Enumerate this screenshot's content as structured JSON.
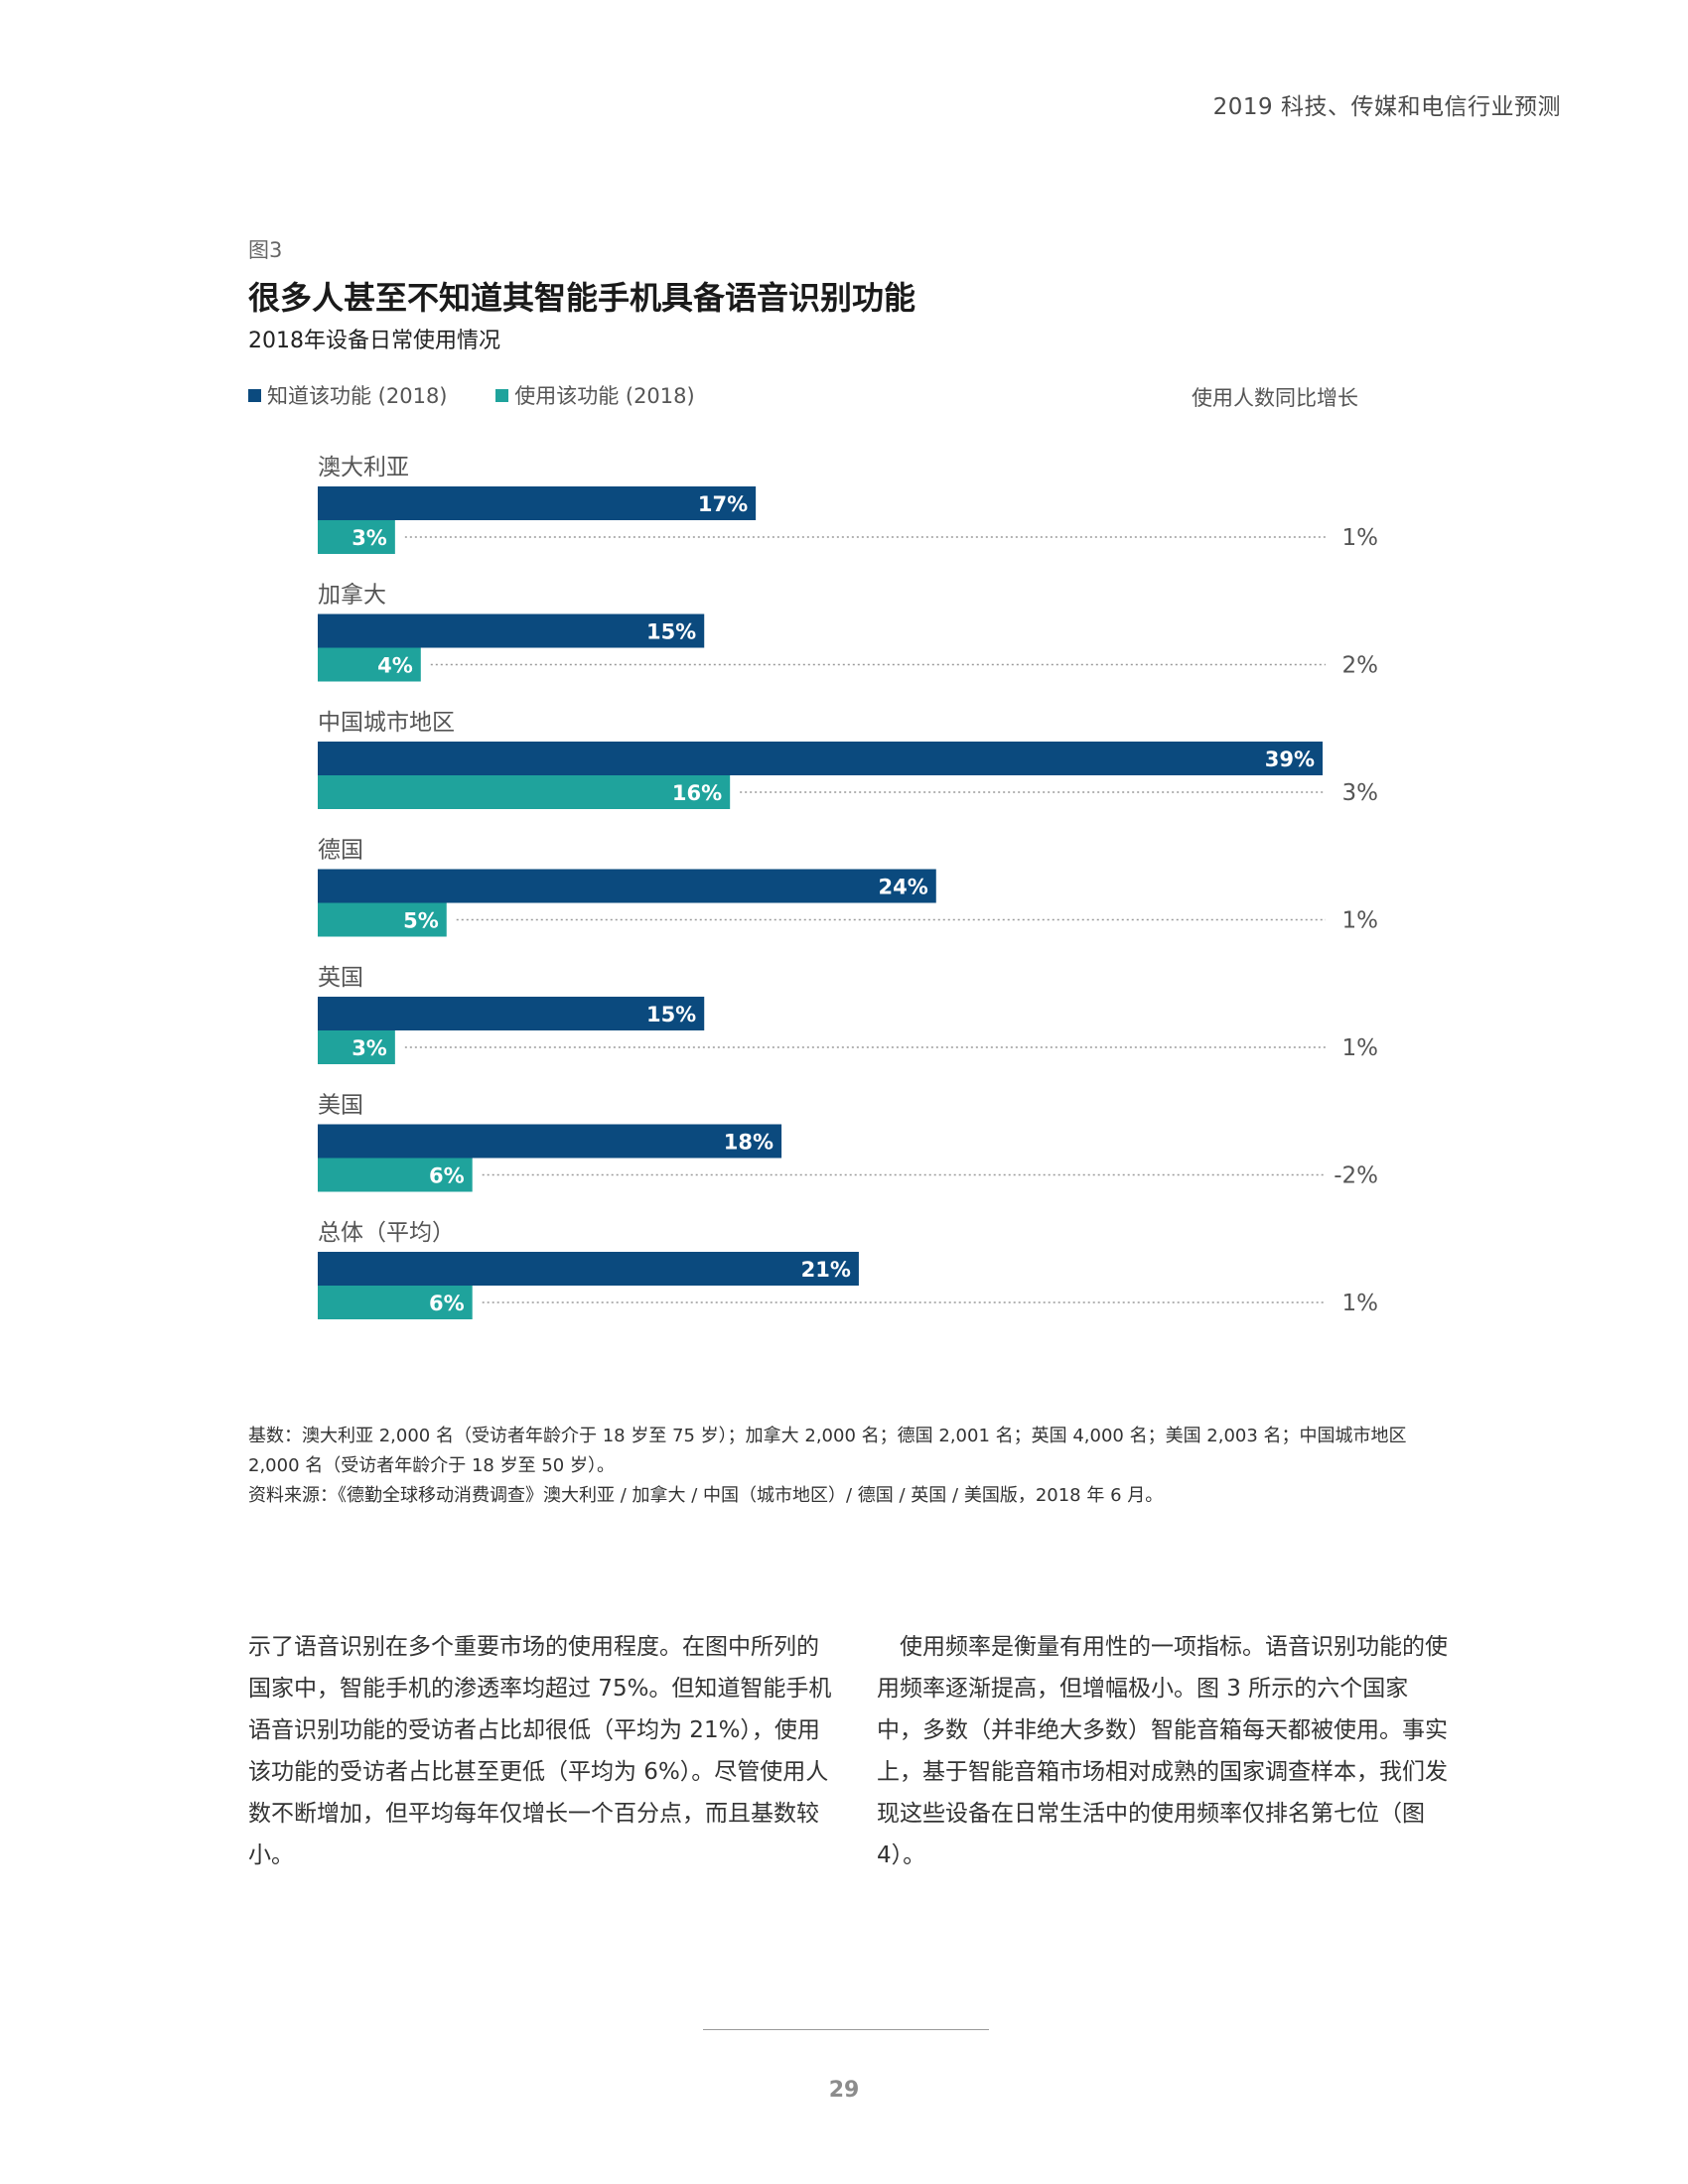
{
  "header": {
    "running_title": "2019 科技、传媒和电信行业预测"
  },
  "figure": {
    "label": "图3",
    "title": "很多人甚至不知道其智能手机具备语音识别功能",
    "subtitle": "2018年设备日常使用情况",
    "legend": [
      {
        "label": "知道该功能 (2018)",
        "color": "#0b4a7e"
      },
      {
        "label": "使用该功能 (2018)",
        "color": "#1fa39c"
      }
    ],
    "growth_header": "使用人数同比增长",
    "colors": {
      "aware": "#0b4a7e",
      "use": "#1fa39c",
      "leader": "#9a9a9a"
    }
  },
  "chart_data": {
    "type": "bar",
    "orientation": "horizontal",
    "title": "很多人甚至不知道其智能手机具备语音识别功能",
    "subtitle": "2018年设备日常使用情况",
    "categories": [
      "澳大利亚",
      "加拿大",
      "中国城市地区",
      "德国",
      "英国",
      "美国",
      "总体（平均）"
    ],
    "series": [
      {
        "name": "知道该功能 (2018)",
        "values": [
          17,
          15,
          39,
          24,
          15,
          18,
          21
        ],
        "labels": [
          "17%",
          "15%",
          "39%",
          "24%",
          "15%",
          "18%",
          "21%"
        ]
      },
      {
        "name": "使用该功能 (2018)",
        "values": [
          3,
          4,
          16,
          5,
          3,
          6,
          6
        ],
        "labels": [
          "3%",
          "4%",
          "16%",
          "5%",
          "3%",
          "6%",
          "6%"
        ]
      }
    ],
    "growth": {
      "name": "使用人数同比增长",
      "values": [
        1,
        2,
        3,
        1,
        1,
        -2,
        1
      ],
      "labels": [
        "1%",
        "2%",
        "3%",
        "1%",
        "1%",
        "-2%",
        "1%"
      ]
    },
    "xlim": [
      0,
      40
    ],
    "grid": false,
    "legend_position": "top-left"
  },
  "notes": {
    "base": "基数：澳大利亚 2,000 名（受访者年龄介于 18 岁至 75 岁）；加拿大 2,000 名；德国 2,001 名；英国 4,000 名；美国 2,003 名；中国城市地区 2,000 名（受访者年龄介于 18 岁至 50 岁）。",
    "source": "资料来源：《德勤全球移动消费调查》澳大利亚 / 加拿大 / 中国（城市地区）/ 德国 / 英国 / 美国版，2018 年 6 月。"
  },
  "body": {
    "left": "示了语音识别在多个重要市场的使用程度。在图中所列的国家中，智能手机的渗透率均超过 75%。但知道智能手机语音识别功能的受访者占比却很低（平均为 21%），使用该功能的受访者占比甚至更低（平均为 6%）。尽管使用人数不断增加，但平均每年仅增长一个百分点，而且基数较小。",
    "right": "使用频率是衡量有用性的一项指标。语音识别功能的使用频率逐渐提高，但增幅极小。图 3 所示的六个国家中，多数（并非绝大多数）智能音箱每天都被使用。事实上，基于智能音箱市场相对成熟的国家调查样本，我们发现这些设备在日常生活中的使用频率仅排名第七位（图 4）。"
  },
  "footer": {
    "page_number": "29"
  }
}
